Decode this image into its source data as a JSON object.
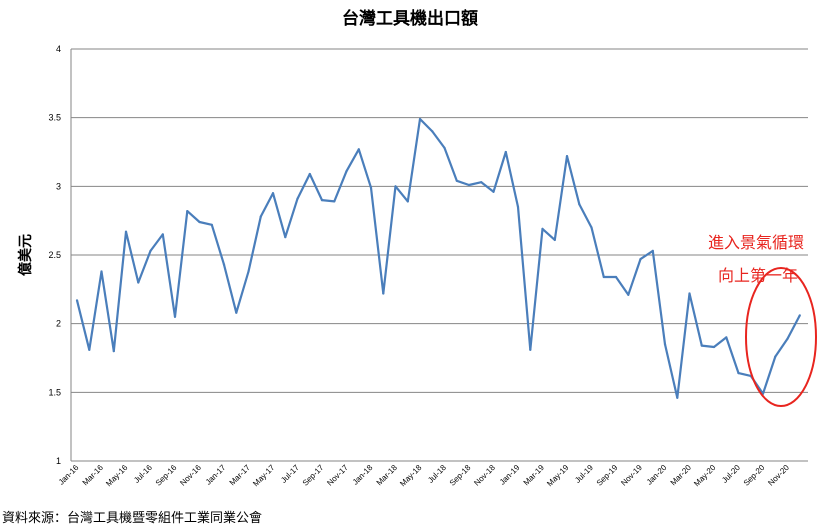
{
  "chart_data": {
    "type": "line",
    "title": "台灣工具機出口額",
    "ylabel": "億美元",
    "xlabel": "",
    "ylim": [
      1,
      4
    ],
    "yticks": [
      "1",
      "1.5",
      "2",
      "2.5",
      "3",
      "3.5",
      "4"
    ],
    "grid": true,
    "x": [
      "Jan-16",
      "Feb-16",
      "Mar-16",
      "Apr-16",
      "May-16",
      "Jun-16",
      "Jul-16",
      "Aug-16",
      "Sep-16",
      "Oct-16",
      "Nov-16",
      "Dec-16",
      "Jan-17",
      "Feb-17",
      "Mar-17",
      "Apr-17",
      "May-17",
      "Jun-17",
      "Jul-17",
      "Aug-17",
      "Sep-17",
      "Oct-17",
      "Nov-17",
      "Dec-17",
      "Jan-18",
      "Feb-18",
      "Mar-18",
      "Apr-18",
      "May-18",
      "Jun-18",
      "Jul-18",
      "Aug-18",
      "Sep-18",
      "Oct-18",
      "Nov-18",
      "Dec-18",
      "Jan-19",
      "Feb-19",
      "Mar-19",
      "Apr-19",
      "May-19",
      "Jun-19",
      "Jul-19",
      "Aug-19",
      "Sep-19",
      "Oct-19",
      "Nov-19",
      "Dec-19",
      "Jan-20",
      "Feb-20",
      "Mar-20",
      "Apr-20",
      "May-20",
      "Jun-20",
      "Jul-20",
      "Aug-20",
      "Sep-20",
      "Oct-20",
      "Nov-20",
      "Dec-20"
    ],
    "x_tick_labels": [
      "Jan-16",
      "Mar-16",
      "May-16",
      "Jul-16",
      "Sep-16",
      "Nov-16",
      "Jan-17",
      "Mar-17",
      "May-17",
      "Jul-17",
      "Sep-17",
      "Nov-17",
      "Jan-18",
      "Mar-18",
      "May-18",
      "Jul-18",
      "Sep-18",
      "Nov-18",
      "Jan-19",
      "Mar-19",
      "May-19",
      "Jul-19",
      "Sep-19",
      "Nov-19",
      "Jan-20",
      "Mar-20",
      "May-20",
      "Jul-20",
      "Sep-20",
      "Nov-20"
    ],
    "series": [
      {
        "color": "#4a7ebb",
        "values": [
          2.17,
          1.81,
          2.38,
          1.8,
          2.67,
          2.3,
          2.53,
          2.65,
          2.05,
          2.82,
          2.74,
          2.72,
          2.43,
          2.08,
          2.38,
          2.78,
          2.95,
          2.63,
          2.91,
          3.09,
          2.9,
          2.89,
          3.11,
          3.27,
          2.99,
          2.22,
          3.0,
          2.89,
          3.49,
          3.4,
          3.28,
          3.04,
          3.01,
          3.03,
          2.96,
          3.25,
          2.85,
          1.81,
          2.69,
          2.61,
          3.22,
          2.87,
          2.7,
          2.34,
          2.34,
          2.21,
          2.47,
          2.53,
          1.85,
          1.46,
          2.22,
          1.84,
          1.83,
          1.9,
          1.64,
          1.62,
          1.49,
          1.76,
          1.89,
          2.06
        ]
      }
    ],
    "annotations": [
      "進入景氣循環",
      "向上第一年"
    ],
    "annotation_color": "#e8251f"
  },
  "source_note": "資料來源：台灣工具機暨零組件工業同業公會"
}
